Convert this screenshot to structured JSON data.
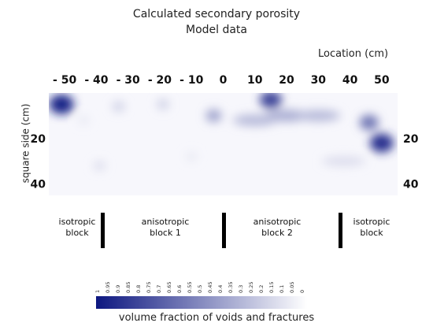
{
  "chart_data": {
    "type": "heatmap",
    "title": "Calculated secondary porosity",
    "subtitle": "Model data",
    "xlabel": "Location (cm)",
    "ylabel": "square side (cm)",
    "x_ticks": [
      "- 50",
      "- 40",
      "- 30",
      "- 20",
      "- 10",
      "0",
      "10",
      "20",
      "30",
      "40",
      "50"
    ],
    "x_tick_values": [
      -50,
      -40,
      -30,
      -20,
      -10,
      0,
      10,
      20,
      30,
      40,
      50
    ],
    "y_ticks_left": [
      "20",
      "40"
    ],
    "y_ticks_right": [
      "20",
      "40"
    ],
    "y_tick_values": [
      20,
      40
    ],
    "xlim": [
      -55,
      55
    ],
    "ylim": [
      0,
      45
    ],
    "colorbar": {
      "label": "volume fraction of voids and fractures",
      "ticks": [
        "1",
        "0.95",
        "0.9",
        "0.85",
        "0.8",
        "0.75",
        "0.7",
        "0.65",
        "0.6",
        "0.55",
        "0.5",
        "0.45",
        "0.4",
        "0.35",
        "0.3",
        "0.25",
        "0.2",
        "0.15",
        "0.1",
        "0.05",
        "0"
      ],
      "low_color": "#ffffff",
      "high_color": "#0d1780"
    },
    "hotspots": [
      {
        "x": -51,
        "y": 5,
        "value": 0.95
      },
      {
        "x": 15,
        "y": 3,
        "value": 0.8
      },
      {
        "x": 50,
        "y": 22,
        "value": 0.9
      },
      {
        "x": 46,
        "y": 13,
        "value": 0.6
      },
      {
        "x": -3,
        "y": 10,
        "value": 0.4
      },
      {
        "x": -33,
        "y": 6,
        "value": 0.2
      },
      {
        "x": -19,
        "y": 5,
        "value": 0.2
      },
      {
        "x": -39,
        "y": 32,
        "value": 0.15
      },
      {
        "x": -44,
        "y": 12,
        "value": 0.1
      },
      {
        "x": 20,
        "y": 10,
        "value": 0.35
      },
      {
        "x": 30,
        "y": 10,
        "value": 0.3
      },
      {
        "x": 10,
        "y": 12,
        "value": 0.3
      },
      {
        "x": -10,
        "y": 28,
        "value": 0.1
      },
      {
        "x": 38,
        "y": 30,
        "value": 0.15
      }
    ],
    "regions": [
      {
        "label": [
          "isotropic",
          "block"
        ]
      },
      {
        "label": [
          "anisotropic",
          "block 1"
        ]
      },
      {
        "label": [
          "anisotropic",
          "block 2"
        ]
      },
      {
        "label": [
          "isotropic",
          "block"
        ]
      }
    ]
  }
}
